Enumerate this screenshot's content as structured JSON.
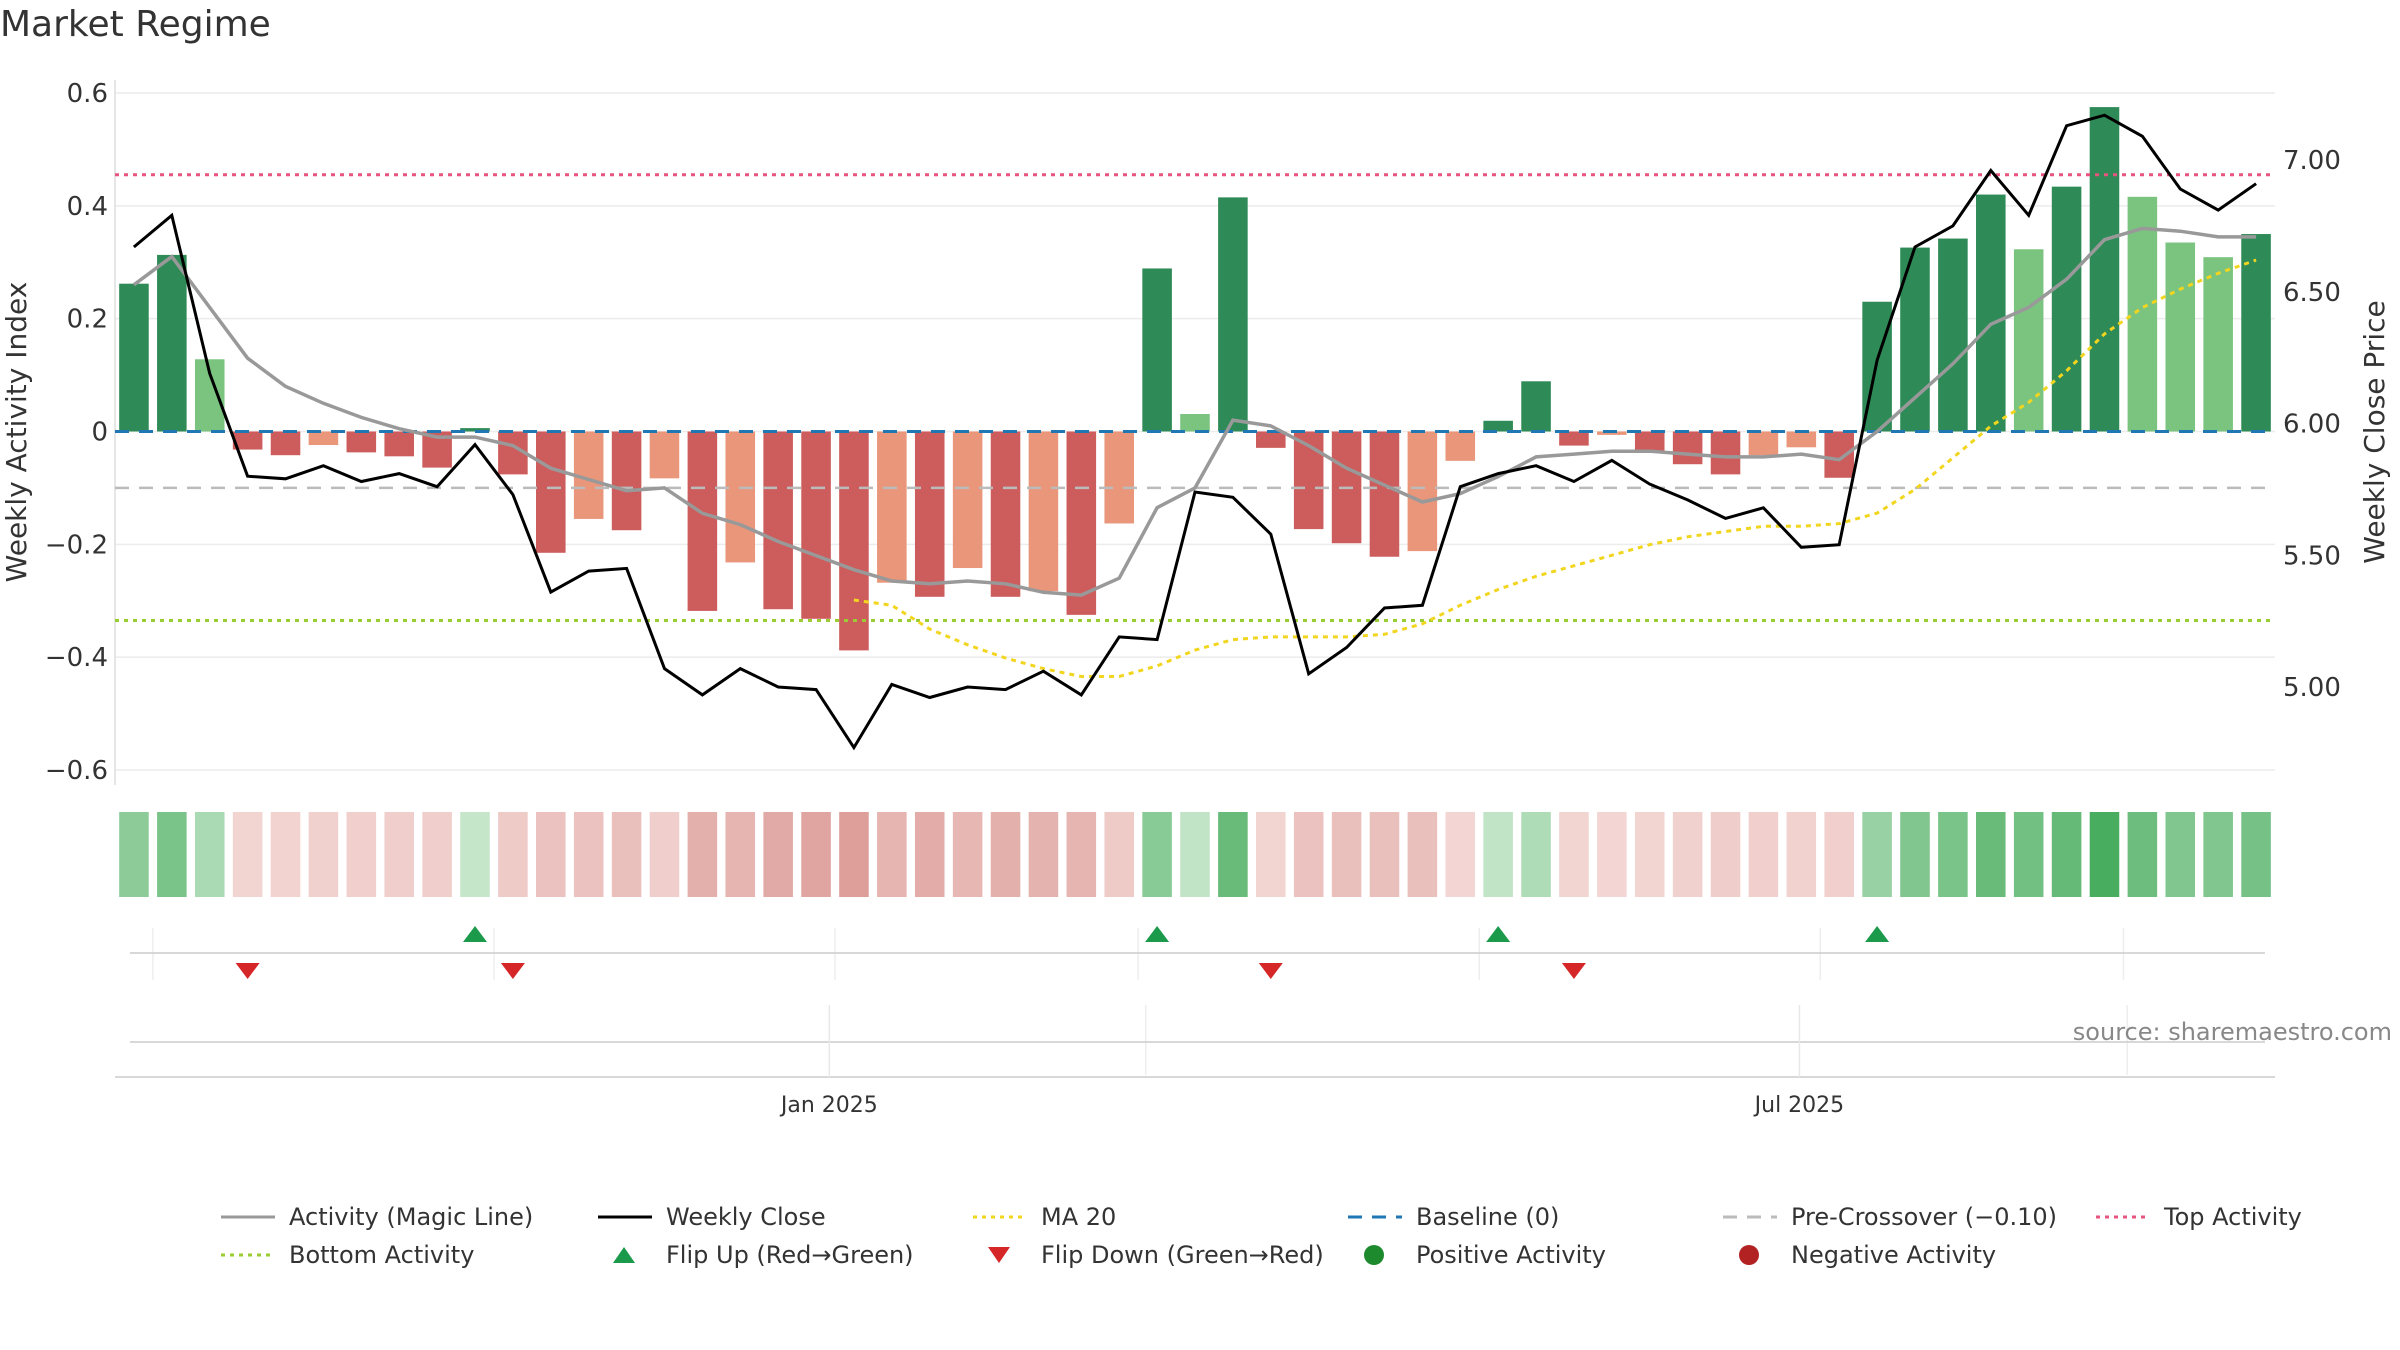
{
  "title": "Market Regime",
  "source": "source: sharemaestro.com",
  "colors": {
    "green_dark": "#2e8b57",
    "green_light": "#7bc47f",
    "red_dark": "#cd5c5c",
    "red_light": "#e9967a",
    "magic": "#999999",
    "close": "#000000",
    "ma": "#f2d51e",
    "baseline": "#1f77b4",
    "precross": "#bbbbbb",
    "top": "#e75480",
    "bottom": "#9acd32",
    "flip_up": "#1a9a4a",
    "flip_down": "#d62728"
  },
  "chart_data": {
    "type": "bar",
    "ylabel": "Weekly Activity Index",
    "y2label": "Weekly Close Price",
    "ylim": [
      -0.6,
      0.6
    ],
    "y2lim": [
      5.0,
      7.0
    ],
    "yticks": [
      "0.6",
      "0.4",
      "0.2",
      "0",
      "−0.2",
      "−0.4",
      "−0.6"
    ],
    "y2ticks": [
      "7.00",
      "6.50",
      "6.00",
      "5.50",
      "5.00"
    ],
    "xticks": [
      "Jan 2025",
      "Jul 2025"
    ],
    "levels": {
      "baseline": 0,
      "pre_crossover": -0.1,
      "top_activity": 0.455,
      "bottom_activity": -0.335
    },
    "activity": [
      0.262,
      0.313,
      0.128,
      -0.032,
      -0.042,
      -0.024,
      -0.037,
      -0.044,
      -0.064,
      0.006,
      -0.076,
      -0.215,
      -0.155,
      -0.175,
      -0.083,
      -0.318,
      -0.232,
      -0.315,
      -0.332,
      -0.388,
      -0.268,
      -0.293,
      -0.242,
      -0.293,
      -0.283,
      -0.325,
      -0.163,
      0.289,
      0.031,
      0.415,
      -0.029,
      -0.173,
      -0.198,
      -0.222,
      -0.212,
      -0.052,
      0.019,
      0.089,
      -0.025,
      -0.006,
      -0.037,
      -0.058,
      -0.076,
      -0.042,
      -0.028,
      -0.082,
      0.23,
      0.326,
      0.342,
      0.42,
      0.323,
      0.434,
      0.575,
      0.416,
      0.335,
      0.309,
      0.35
    ],
    "bar_shade": [
      "d",
      "d",
      "l",
      "d",
      "d",
      "l",
      "d",
      "d",
      "d",
      "d",
      "d",
      "d",
      "l",
      "d",
      "l",
      "d",
      "l",
      "d",
      "d",
      "d",
      "l",
      "d",
      "l",
      "d",
      "l",
      "d",
      "l",
      "d",
      "l",
      "d",
      "d",
      "d",
      "d",
      "d",
      "l",
      "l",
      "d",
      "d",
      "d",
      "l",
      "d",
      "d",
      "d",
      "l",
      "l",
      "d",
      "d",
      "d",
      "d",
      "d",
      "l",
      "d",
      "d",
      "l",
      "l",
      "l",
      "d"
    ],
    "activity_magic_line": [
      0.26,
      0.31,
      0.22,
      0.13,
      0.08,
      0.05,
      0.025,
      0.005,
      -0.01,
      -0.01,
      -0.025,
      -0.065,
      -0.085,
      -0.105,
      -0.1,
      -0.145,
      -0.165,
      -0.195,
      -0.22,
      -0.245,
      -0.265,
      -0.27,
      -0.265,
      -0.27,
      -0.285,
      -0.29,
      -0.26,
      -0.135,
      -0.1,
      0.02,
      0.01,
      -0.025,
      -0.065,
      -0.095,
      -0.125,
      -0.11,
      -0.08,
      -0.045,
      -0.04,
      -0.035,
      -0.035,
      -0.04,
      -0.045,
      -0.045,
      -0.04,
      -0.05,
      0.0,
      0.06,
      0.12,
      0.19,
      0.22,
      0.27,
      0.34,
      0.36,
      0.355,
      0.345,
      0.345
    ],
    "weekly_close": [
      6.67,
      6.79,
      6.19,
      5.8,
      5.79,
      5.84,
      5.78,
      5.81,
      5.76,
      5.92,
      5.73,
      5.36,
      5.44,
      5.45,
      5.07,
      4.97,
      5.07,
      5.0,
      4.99,
      4.77,
      5.01,
      4.96,
      5.0,
      4.99,
      5.06,
      4.97,
      5.19,
      5.18,
      5.74,
      5.72,
      5.58,
      5.05,
      5.15,
      5.3,
      5.31,
      5.76,
      5.81,
      5.84,
      5.78,
      5.86,
      5.77,
      5.71,
      5.64,
      5.68,
      5.53,
      5.54,
      6.24,
      6.67,
      6.75,
      6.96,
      6.79,
      7.13,
      7.17,
      7.09,
      6.89,
      6.81,
      6.91
    ],
    "ma20": [
      null,
      null,
      null,
      null,
      null,
      null,
      null,
      null,
      null,
      null,
      null,
      null,
      null,
      null,
      null,
      null,
      null,
      null,
      null,
      5.33,
      5.31,
      5.22,
      5.16,
      5.11,
      5.07,
      5.04,
      5.04,
      5.08,
      5.14,
      5.18,
      5.19,
      5.19,
      5.19,
      5.2,
      5.24,
      5.31,
      5.37,
      5.42,
      5.46,
      5.5,
      5.54,
      5.57,
      5.59,
      5.61,
      5.61,
      5.62,
      5.66,
      5.75,
      5.87,
      5.99,
      6.08,
      6.2,
      6.34,
      6.44,
      6.51,
      6.57,
      6.62
    ],
    "regime_strip": [
      0.48,
      0.58,
      0.32,
      -0.12,
      -0.13,
      -0.15,
      -0.16,
      -0.17,
      -0.17,
      0.18,
      -0.2,
      -0.28,
      -0.28,
      -0.3,
      -0.17,
      -0.45,
      -0.4,
      -0.5,
      -0.55,
      -0.6,
      -0.4,
      -0.48,
      -0.38,
      -0.45,
      -0.42,
      -0.4,
      -0.2,
      0.5,
      0.2,
      0.68,
      -0.12,
      -0.28,
      -0.3,
      -0.3,
      -0.3,
      -0.1,
      0.2,
      0.3,
      -0.12,
      -0.1,
      -0.12,
      -0.15,
      -0.18,
      -0.16,
      -0.14,
      -0.16,
      0.42,
      0.55,
      0.58,
      0.68,
      0.62,
      0.7,
      0.85,
      0.65,
      0.55,
      0.55,
      0.6
    ],
    "flip_up_weeks": [
      9,
      27,
      36,
      46
    ],
    "flip_down_weeks": [
      3,
      10,
      30,
      38
    ],
    "minor_grid_weeks": [
      1,
      10,
      19,
      27,
      36,
      45,
      53
    ]
  },
  "legend": [
    {
      "label": "Activity (Magic Line)",
      "sym": "line",
      "color": "#999999"
    },
    {
      "label": "Weekly Close",
      "sym": "line",
      "color": "#000000"
    },
    {
      "label": "MA 20",
      "sym": "dotted",
      "color": "#f2d51e"
    },
    {
      "label": "Baseline (0)",
      "sym": "dashed",
      "color": "#1f77b4"
    },
    {
      "label": "Pre-Crossover (−0.10)",
      "sym": "dashed",
      "color": "#bbbbbb"
    },
    {
      "label": "Top Activity",
      "sym": "dotted",
      "color": "#e75480"
    },
    {
      "label": "Bottom Activity",
      "sym": "dotted",
      "color": "#9acd32"
    },
    {
      "label": "Flip Up (Red→Green)",
      "sym": "tri-up",
      "color": "#1a9a4a"
    },
    {
      "label": "Flip Down (Green→Red)",
      "sym": "tri-down",
      "color": "#d62728"
    },
    {
      "label": "Positive Activity",
      "sym": "dot",
      "color": "#1e8a2e"
    },
    {
      "label": "Negative Activity",
      "sym": "dot",
      "color": "#b22222"
    }
  ]
}
